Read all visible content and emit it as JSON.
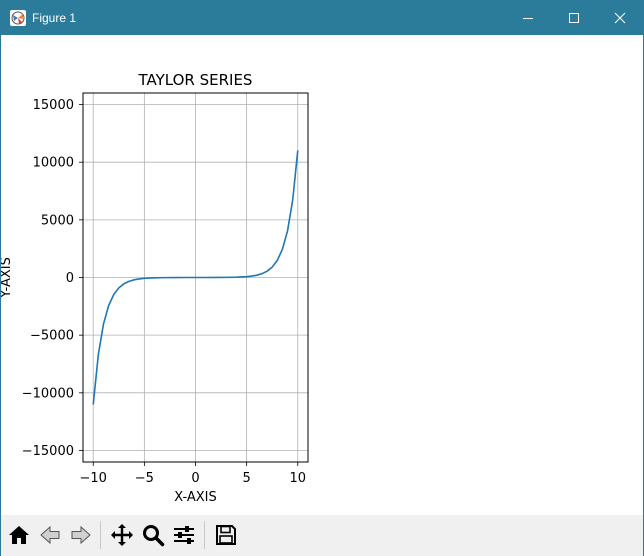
{
  "window": {
    "title": "Figure 1",
    "titlebar_color": "#2b7b9b",
    "buttons": [
      "minimize-icon",
      "maximize-icon",
      "close-icon"
    ]
  },
  "toolbar": {
    "items": [
      "home-icon",
      "back-arrow-icon",
      "forward-arrow-icon",
      "pan-move-icon",
      "zoom-magnifier-icon",
      "configure-subplots-icon",
      "save-floppy-icon"
    ]
  },
  "chart_data": {
    "type": "line",
    "title": "TAYLOR SERIES",
    "xlabel": "X-AXIS",
    "ylabel": "Y-AXIS",
    "xlim": [
      -11,
      11
    ],
    "ylim": [
      -16000,
      16000
    ],
    "xticks": [
      -10,
      -5,
      0,
      5,
      10
    ],
    "xtick_labels": [
      "−10",
      "−5",
      "0",
      "5",
      "10"
    ],
    "yticks": [
      -15000,
      -10000,
      -5000,
      0,
      5000,
      10000,
      15000
    ],
    "ytick_labels": [
      "−15000",
      "−10000",
      "−5000",
      "0",
      "5000",
      "10000",
      "15000"
    ],
    "grid": true,
    "line_color": "#1f77b4",
    "series": [
      {
        "x": [
          -10,
          -9.5,
          -9,
          -8.5,
          -8,
          -7.5,
          -7,
          -6.5,
          -6,
          -5.5,
          -5,
          -4,
          -3,
          -2,
          -1,
          0,
          1,
          2,
          3,
          4,
          5,
          5.5,
          6,
          6.5,
          7,
          7.5,
          8,
          8.5,
          9,
          9.5,
          10
        ],
        "y": [
          -11013,
          -6685,
          -4052,
          -2456,
          -1490,
          -904,
          -548,
          -332,
          -201,
          -122,
          -74,
          -27,
          -10,
          -4,
          -1,
          0,
          1,
          4,
          10,
          27,
          74,
          122,
          201,
          332,
          548,
          904,
          1490,
          2456,
          4052,
          6685,
          11013
        ]
      }
    ]
  }
}
